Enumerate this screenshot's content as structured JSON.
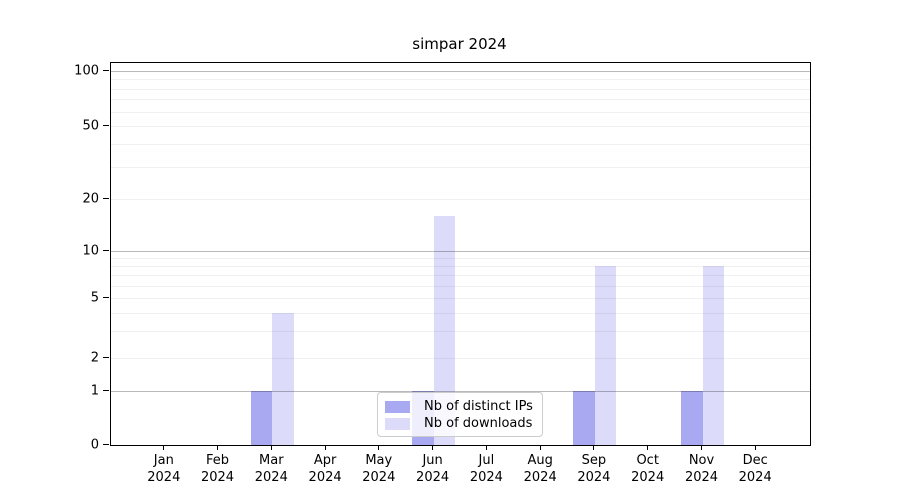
{
  "chart_data": {
    "type": "bar",
    "title": "simpar 2024",
    "categories": [
      "Jan",
      "Feb",
      "Mar",
      "Apr",
      "May",
      "Jun",
      "Jul",
      "Aug",
      "Sep",
      "Oct",
      "Nov",
      "Dec"
    ],
    "year_label": "2024",
    "series": [
      {
        "name": "Nb of distinct IPs",
        "color": "#a9a9f2",
        "values": [
          0,
          0,
          1,
          0,
          0,
          1,
          0,
          0,
          1,
          0,
          1,
          0
        ]
      },
      {
        "name": "Nb of downloads",
        "color": "#dcdcfa",
        "values": [
          0,
          0,
          4,
          0,
          0,
          16,
          0,
          0,
          8,
          0,
          8,
          0
        ]
      }
    ],
    "yticks": [
      0,
      1,
      2,
      5,
      10,
      20,
      50,
      100
    ],
    "major_gridlines": [
      1,
      10,
      100
    ],
    "minor_gridlines": [
      2,
      3,
      4,
      5,
      6,
      7,
      8,
      9,
      20,
      30,
      40,
      50,
      60,
      70,
      80,
      90
    ],
    "ylim": [
      0,
      100
    ],
    "y_scale": "log-like (0 baseline, log above 1)",
    "grid": true,
    "legend_position": "lower center"
  }
}
